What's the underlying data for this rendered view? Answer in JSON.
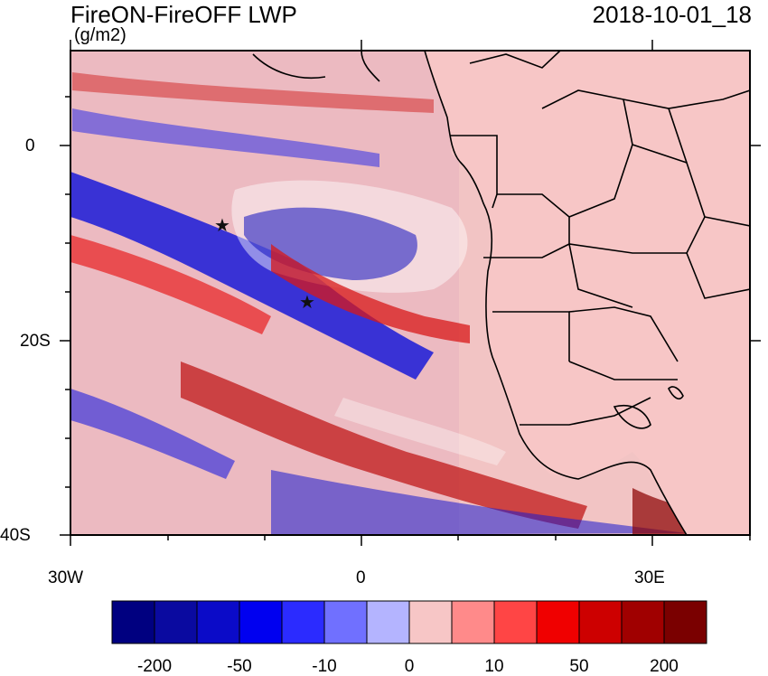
{
  "header": {
    "title": "FireON-FireOFF LWP",
    "units": "(g/m2)",
    "datetime": "2018-10-01_18"
  },
  "axes": {
    "y_tick_labels": [
      "0",
      "20S",
      "40S"
    ],
    "x_tick_labels": [
      "30W",
      "0",
      "30E"
    ]
  },
  "colorbar": {
    "labels": [
      "-200",
      "-50",
      "-10",
      "0",
      "10",
      "50",
      "200"
    ],
    "colors": [
      "#000080",
      "#0a0aa0",
      "#0b0bc8",
      "#0000f0",
      "#2b2bff",
      "#7070ff",
      "#b4b4ff",
      "#f7c6c6",
      "#ff8a8a",
      "#ff4545",
      "#f00000",
      "#cd0000",
      "#a00000",
      "#7a0000"
    ]
  },
  "markers": {
    "symbol": "★"
  }
}
